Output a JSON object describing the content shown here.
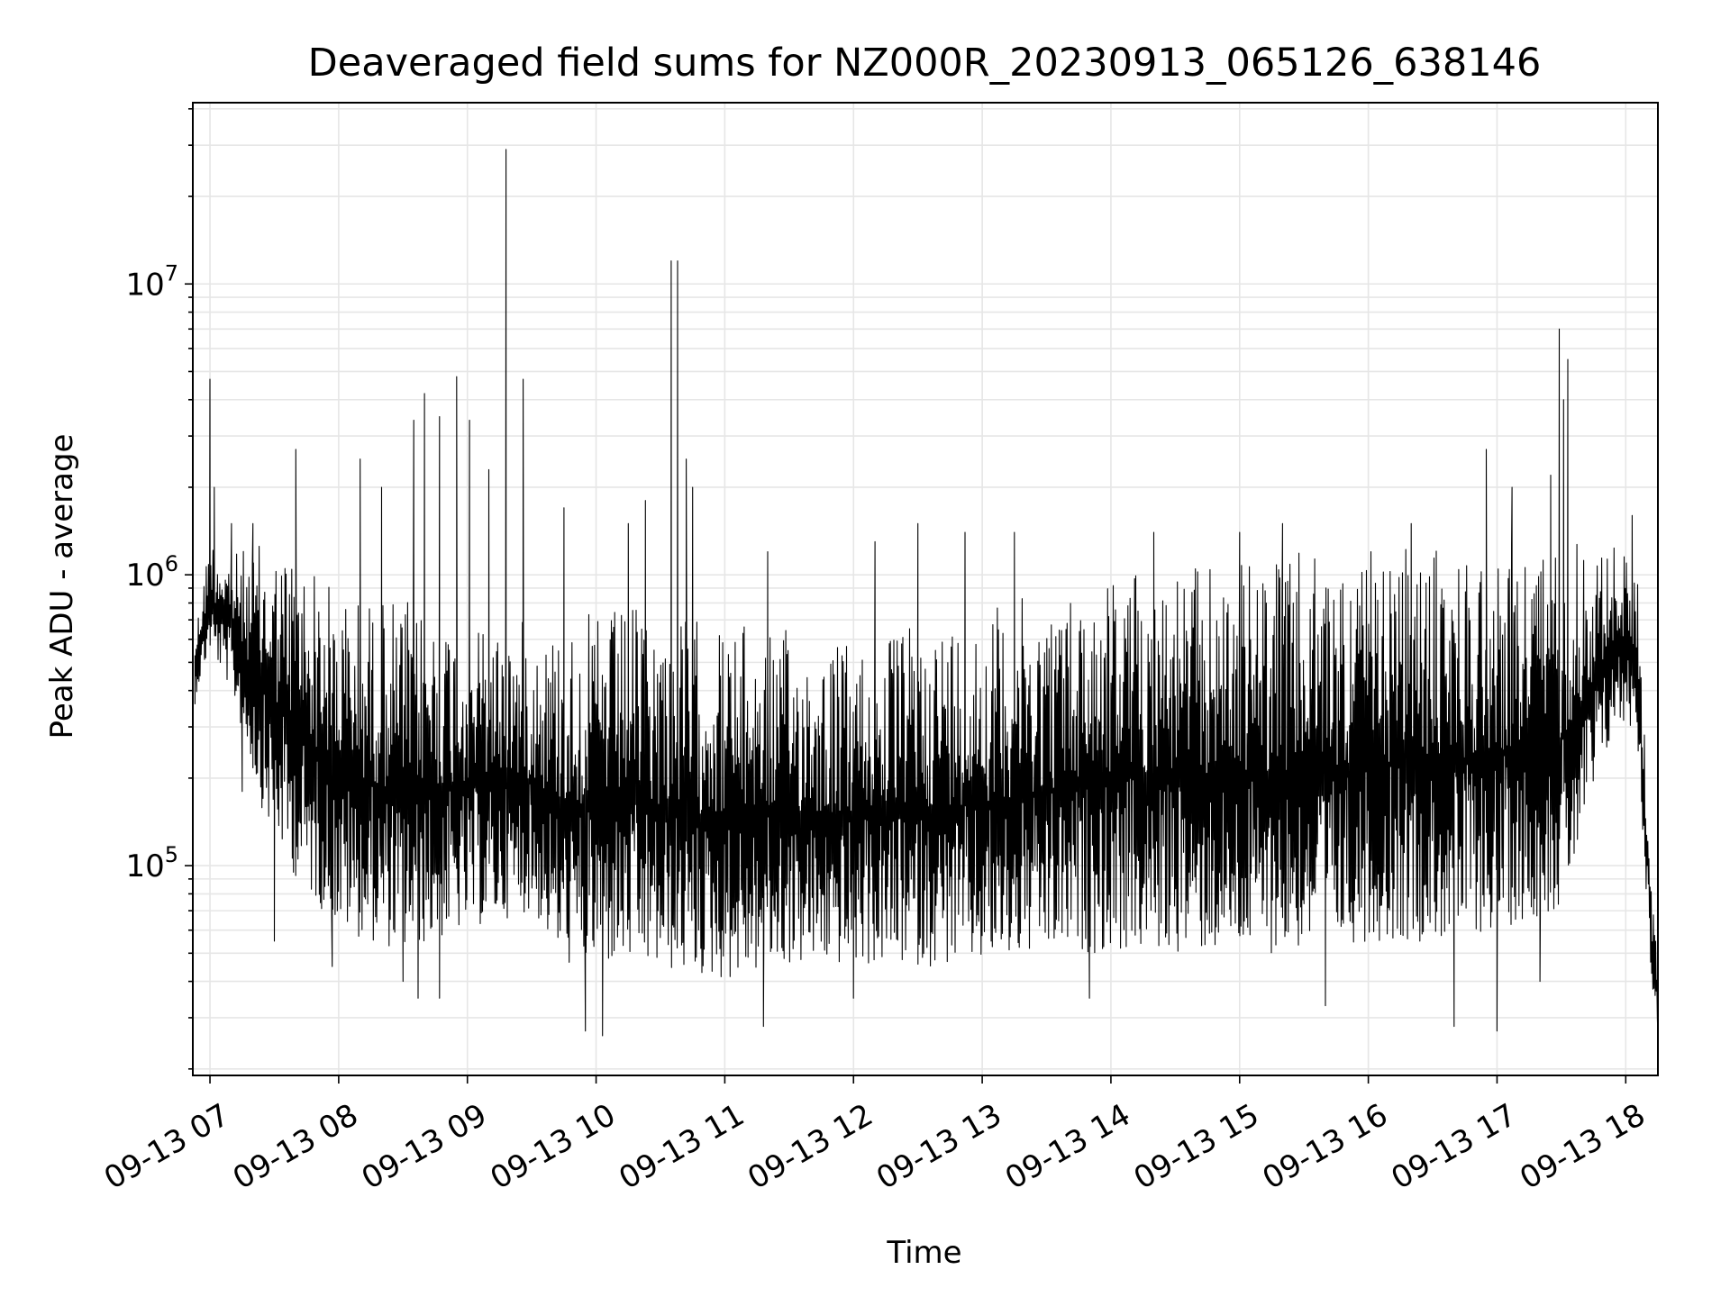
{
  "chart_data": {
    "type": "line",
    "title": "Deaveraged field sums for NZ000R_20230913_065126_638146",
    "xlabel": "Time",
    "ylabel": "Peak ADU - average",
    "yscale": "log",
    "ylim": [
      19000,
      42000000
    ],
    "xlim": [
      "2023-09-13 06:52",
      "2023-09-13 18:15"
    ],
    "grid": true,
    "line_color": "#000000",
    "grid_color": "#e6e6e6",
    "x_ticks": [
      {
        "value": "2023-09-13 07:00",
        "label": "09-13 07"
      },
      {
        "value": "2023-09-13 08:00",
        "label": "09-13 08"
      },
      {
        "value": "2023-09-13 09:00",
        "label": "09-13 09"
      },
      {
        "value": "2023-09-13 10:00",
        "label": "09-13 10"
      },
      {
        "value": "2023-09-13 11:00",
        "label": "09-13 11"
      },
      {
        "value": "2023-09-13 12:00",
        "label": "09-13 12"
      },
      {
        "value": "2023-09-13 13:00",
        "label": "09-13 13"
      },
      {
        "value": "2023-09-13 14:00",
        "label": "09-13 14"
      },
      {
        "value": "2023-09-13 15:00",
        "label": "09-13 15"
      },
      {
        "value": "2023-09-13 16:00",
        "label": "09-13 16"
      },
      {
        "value": "2023-09-13 17:00",
        "label": "09-13 17"
      },
      {
        "value": "2023-09-13 18:00",
        "label": "09-13 18"
      }
    ],
    "y_ticks": [
      {
        "value": 100000,
        "base": "10",
        "exp": "5"
      },
      {
        "value": 1000000,
        "base": "10",
        "exp": "6"
      },
      {
        "value": 10000000,
        "base": "10",
        "exp": "7"
      }
    ],
    "series": [
      {
        "peaks": [
          {
            "x": "2023-09-13 06:53",
            "y": 450000
          },
          {
            "x": "2023-09-13 07:00",
            "y": 4700000
          },
          {
            "x": "2023-09-13 07:02",
            "y": 2000000
          },
          {
            "x": "2023-09-13 07:10",
            "y": 1500000
          },
          {
            "x": "2023-09-13 07:20",
            "y": 1500000
          },
          {
            "x": "2023-09-13 07:40",
            "y": 2700000
          },
          {
            "x": "2023-09-13 08:10",
            "y": 2500000
          },
          {
            "x": "2023-09-13 08:20",
            "y": 2000000
          },
          {
            "x": "2023-09-13 08:35",
            "y": 3400000
          },
          {
            "x": "2023-09-13 08:40",
            "y": 4200000
          },
          {
            "x": "2023-09-13 08:47",
            "y": 3500000
          },
          {
            "x": "2023-09-13 08:55",
            "y": 4800000
          },
          {
            "x": "2023-09-13 09:01",
            "y": 3400000
          },
          {
            "x": "2023-09-13 09:10",
            "y": 2300000
          },
          {
            "x": "2023-09-13 09:18",
            "y": 29000000
          },
          {
            "x": "2023-09-13 09:26",
            "y": 4700000
          },
          {
            "x": "2023-09-13 09:45",
            "y": 1700000
          },
          {
            "x": "2023-09-13 10:15",
            "y": 1500000
          },
          {
            "x": "2023-09-13 10:23",
            "y": 1800000
          },
          {
            "x": "2023-09-13 10:35",
            "y": 12000000
          },
          {
            "x": "2023-09-13 10:38",
            "y": 12000000
          },
          {
            "x": "2023-09-13 10:42",
            "y": 2500000
          },
          {
            "x": "2023-09-13 10:45",
            "y": 2000000
          },
          {
            "x": "2023-09-13 11:20",
            "y": 1200000
          },
          {
            "x": "2023-09-13 12:10",
            "y": 1300000
          },
          {
            "x": "2023-09-13 12:30",
            "y": 1500000
          },
          {
            "x": "2023-09-13 12:52",
            "y": 1400000
          },
          {
            "x": "2023-09-13 13:15",
            "y": 1400000
          },
          {
            "x": "2023-09-13 14:20",
            "y": 1400000
          },
          {
            "x": "2023-09-13 15:00",
            "y": 1400000
          },
          {
            "x": "2023-09-13 15:20",
            "y": 1500000
          },
          {
            "x": "2023-09-13 16:20",
            "y": 1500000
          },
          {
            "x": "2023-09-13 16:55",
            "y": 2700000
          },
          {
            "x": "2023-09-13 17:07",
            "y": 2000000
          },
          {
            "x": "2023-09-13 17:25",
            "y": 2200000
          },
          {
            "x": "2023-09-13 17:29",
            "y": 7000000
          },
          {
            "x": "2023-09-13 17:31",
            "y": 4000000
          },
          {
            "x": "2023-09-13 17:33",
            "y": 5500000
          },
          {
            "x": "2023-09-13 18:03",
            "y": 1600000
          }
        ],
        "troughs": [
          {
            "x": "2023-09-13 06:53",
            "y": 360000
          },
          {
            "x": "2023-09-13 07:15",
            "y": 180000
          },
          {
            "x": "2023-09-13 07:30",
            "y": 55000
          },
          {
            "x": "2023-09-13 07:57",
            "y": 45000
          },
          {
            "x": "2023-09-13 08:30",
            "y": 40000
          },
          {
            "x": "2023-09-13 08:37",
            "y": 35000
          },
          {
            "x": "2023-09-13 08:47",
            "y": 35000
          },
          {
            "x": "2023-09-13 09:55",
            "y": 27000
          },
          {
            "x": "2023-09-13 10:03",
            "y": 26000
          },
          {
            "x": "2023-09-13 11:18",
            "y": 28000
          },
          {
            "x": "2023-09-13 12:00",
            "y": 35000
          },
          {
            "x": "2023-09-13 13:50",
            "y": 35000
          },
          {
            "x": "2023-09-13 15:40",
            "y": 33000
          },
          {
            "x": "2023-09-13 16:40",
            "y": 28000
          },
          {
            "x": "2023-09-13 17:00",
            "y": 27000
          },
          {
            "x": "2023-09-13 17:20",
            "y": 40000
          },
          {
            "x": "2023-09-13 18:15",
            "y": 26000
          }
        ],
        "envelope": [
          {
            "x": "2023-09-13 06:53",
            "upper": 650000,
            "lower": 380000
          },
          {
            "x": "2023-09-13 07:00",
            "upper": 1400000,
            "lower": 550000
          },
          {
            "x": "2023-09-13 07:10",
            "upper": 1200000,
            "lower": 400000
          },
          {
            "x": "2023-09-13 07:25",
            "upper": 1300000,
            "lower": 150000
          },
          {
            "x": "2023-09-13 07:40",
            "upper": 1300000,
            "lower": 90000
          },
          {
            "x": "2023-09-13 08:00",
            "upper": 900000,
            "lower": 60000
          },
          {
            "x": "2023-09-13 08:30",
            "upper": 850000,
            "lower": 50000
          },
          {
            "x": "2023-09-13 09:00",
            "upper": 750000,
            "lower": 60000
          },
          {
            "x": "2023-09-13 09:30",
            "upper": 700000,
            "lower": 70000
          },
          {
            "x": "2023-09-13 09:45",
            "upper": 700000,
            "lower": 45000
          },
          {
            "x": "2023-09-13 10:15",
            "upper": 800000,
            "lower": 45000
          },
          {
            "x": "2023-09-13 11:00",
            "upper": 700000,
            "lower": 40000
          },
          {
            "x": "2023-09-13 11:30",
            "upper": 650000,
            "lower": 45000
          },
          {
            "x": "2023-09-13 12:00",
            "upper": 600000,
            "lower": 45000
          },
          {
            "x": "2023-09-13 12:30",
            "upper": 700000,
            "lower": 45000
          },
          {
            "x": "2023-09-13 13:00",
            "upper": 800000,
            "lower": 45000
          },
          {
            "x": "2023-09-13 13:40",
            "upper": 900000,
            "lower": 50000
          },
          {
            "x": "2023-09-13 14:00",
            "upper": 1100000,
            "lower": 50000
          },
          {
            "x": "2023-09-13 14:40",
            "upper": 1100000,
            "lower": 50000
          },
          {
            "x": "2023-09-13 15:20",
            "upper": 1200000,
            "lower": 50000
          },
          {
            "x": "2023-09-13 16:00",
            "upper": 1200000,
            "lower": 55000
          },
          {
            "x": "2023-09-13 16:40",
            "upper": 1300000,
            "lower": 55000
          },
          {
            "x": "2023-09-13 17:00",
            "upper": 1300000,
            "lower": 60000
          },
          {
            "x": "2023-09-13 17:30",
            "upper": 1400000,
            "lower": 70000
          },
          {
            "x": "2023-09-13 17:55",
            "upper": 1300000,
            "lower": 300000
          },
          {
            "x": "2023-09-13 18:05",
            "upper": 1200000,
            "lower": 300000
          },
          {
            "x": "2023-09-13 18:12",
            "upper": 90000,
            "lower": 40000
          },
          {
            "x": "2023-09-13 18:15",
            "upper": 45000,
            "lower": 27000
          }
        ]
      }
    ]
  }
}
